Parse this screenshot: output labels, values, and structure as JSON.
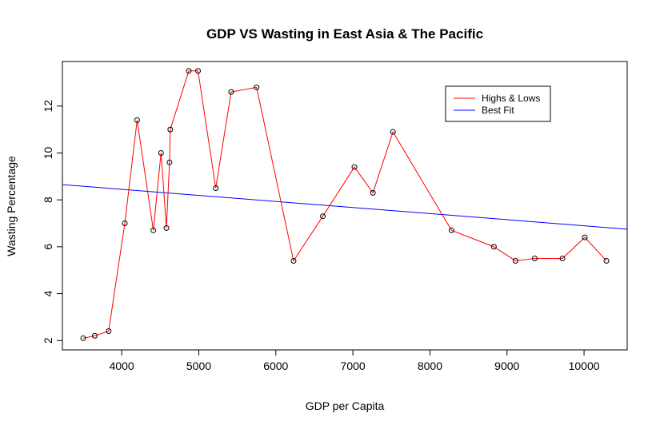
{
  "chart_data": {
    "type": "line",
    "title": "GDP VS Wasting in East Asia & The Pacific",
    "xlabel": "GDP per Capita",
    "ylabel": "Wasting Percentage",
    "xlim": [
      3230,
      10560
    ],
    "ylim": [
      1.6,
      13.9
    ],
    "xticks": [
      4000,
      5000,
      6000,
      7000,
      8000,
      9000,
      10000
    ],
    "yticks": [
      2,
      4,
      6,
      8,
      10,
      12
    ],
    "grid": false,
    "legend": {
      "placement": "top-right",
      "entries": [
        {
          "name": "Highs & Lows",
          "color": "#ff0000"
        },
        {
          "name": "Best Fit",
          "color": "#0000ff"
        }
      ]
    },
    "series": [
      {
        "name": "Highs & Lows",
        "color": "#ff0000",
        "x": [
          3500,
          3650,
          3830,
          4040,
          4200,
          4410,
          4510,
          4580,
          4620,
          4630,
          4870,
          4990,
          5220,
          5420,
          5750,
          6230,
          6610,
          7020,
          7260,
          7520,
          8280,
          8830,
          9110,
          9360,
          9720,
          10010,
          10290
        ],
        "y": [
          2.1,
          2.2,
          2.4,
          7.0,
          11.4,
          6.7,
          10.0,
          6.8,
          9.6,
          11.0,
          13.5,
          13.5,
          8.5,
          12.6,
          12.8,
          5.4,
          7.3,
          9.4,
          8.3,
          10.9,
          6.7,
          6.0,
          5.4,
          5.5,
          5.5,
          6.4,
          5.4
        ]
      },
      {
        "name": "Best Fit",
        "color": "#0000ff",
        "x": [
          3230,
          10560
        ],
        "y": [
          8.65,
          6.75
        ]
      }
    ]
  }
}
